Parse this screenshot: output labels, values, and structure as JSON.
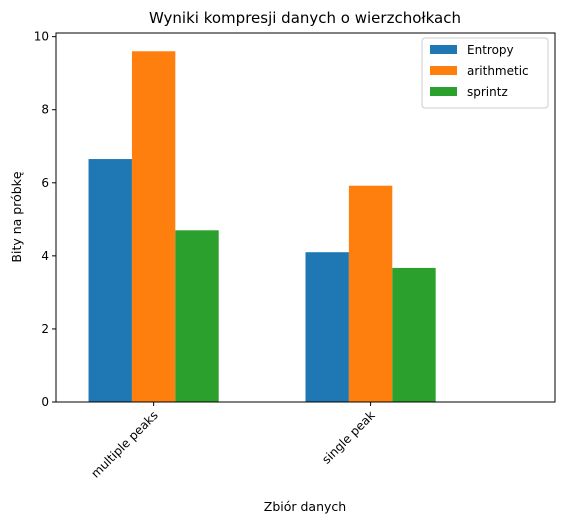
{
  "chart_data": {
    "type": "bar",
    "title": "Wyniki kompresji danych o wierzchołkach",
    "xlabel": "Zbiór danych",
    "ylabel": "Bity na próbkę",
    "categories": [
      "multiple peaks",
      "single peak"
    ],
    "series": [
      {
        "name": "Entropy",
        "color": "#1f77b4",
        "values": [
          6.65,
          4.1
        ]
      },
      {
        "name": "arithmetic",
        "color": "#ff7f0e",
        "values": [
          9.6,
          5.92
        ]
      },
      {
        "name": "sprintz",
        "color": "#2ca02c",
        "values": [
          4.7,
          3.67
        ]
      }
    ],
    "ylim": [
      0,
      10.1
    ],
    "yticks": [
      0,
      2,
      4,
      6,
      8,
      10
    ],
    "legend_position": "top-right",
    "grid": false
  }
}
